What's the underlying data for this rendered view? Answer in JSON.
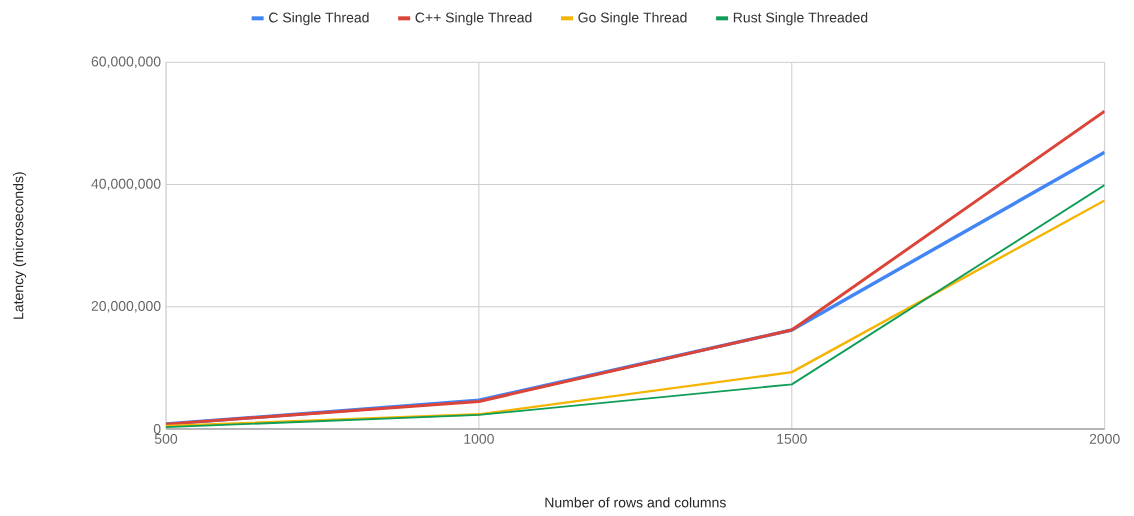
{
  "chart_data": {
    "type": "line",
    "xlabel": "Number of rows and columns",
    "ylabel": "Latency (microseconds)",
    "x": [
      500,
      1000,
      1500,
      2000
    ],
    "series": [
      {
        "name": "C Single Thread",
        "color": "#4285f4",
        "values": [
          800000,
          4700000,
          16200000,
          45300000
        ]
      },
      {
        "name": "C++ Single Thread",
        "color": "#db4437",
        "values": [
          800000,
          4500000,
          16200000,
          52000000
        ]
      },
      {
        "name": "Go Single Thread",
        "color": "#f4b400",
        "values": [
          500000,
          2400000,
          9300000,
          37400000
        ]
      },
      {
        "name": "Rust Single Threaded",
        "color": "#0f9d58",
        "values": [
          300000,
          2300000,
          7300000,
          39900000
        ]
      }
    ],
    "xlim": [
      500,
      2000
    ],
    "xticks": [
      500,
      1000,
      1500,
      2000
    ],
    "ylim": [
      0,
      60000000
    ],
    "yticks": [
      0,
      {
        "value": 20000000,
        "label": "20,000,000"
      },
      {
        "value": 40000000,
        "label": "40,000,000"
      },
      {
        "value": 60000000,
        "label": "60,000,000"
      }
    ],
    "grid": true,
    "legend": "top",
    "marker": "none",
    "line_style": "solid"
  }
}
